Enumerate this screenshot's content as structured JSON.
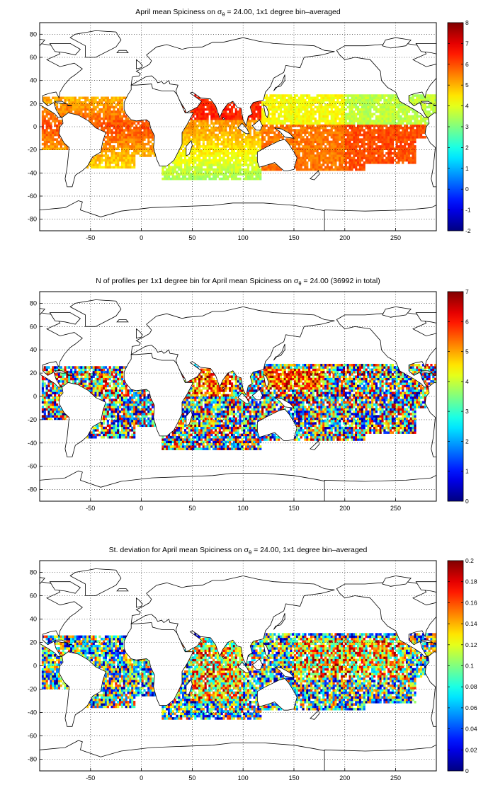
{
  "chart_data": [
    {
      "type": "heatmap",
      "title_before_sigma": "April mean Spiciness on ",
      "title_sigma": "σ",
      "title_sub": "θ",
      "title_after": " = 24.00, 1x1 degree bin–averaged",
      "x_ticks": [
        "-50",
        "0",
        "50",
        "100",
        "150",
        "200",
        "250"
      ],
      "x_tick_values": [
        -50,
        0,
        50,
        100,
        150,
        200,
        250
      ],
      "y_ticks": [
        "80",
        "60",
        "40",
        "20",
        "0",
        "-20",
        "-40",
        "-60",
        "-80"
      ],
      "y_tick_values": [
        80,
        60,
        40,
        20,
        0,
        -20,
        -40,
        -60,
        -80
      ],
      "xlim": [
        -100,
        290
      ],
      "ylim": [
        -90,
        90
      ],
      "colorbar_ticks": [
        "8",
        "7",
        "6",
        "5",
        "4",
        "3",
        "2",
        "1",
        "0",
        "-1",
        "-2"
      ],
      "colorbar_values": [
        8,
        7,
        6,
        5,
        4,
        3,
        2,
        1,
        0,
        -1,
        -2
      ],
      "clim": [
        -2,
        8
      ],
      "colormap": "jet",
      "grid": true
    },
    {
      "type": "heatmap",
      "title_before_sigma": "N of profiles per 1x1 degree bin for April mean Spiciness on ",
      "title_sigma": "σ",
      "title_sub": "θ",
      "title_after": " = 24.00 (36992 in total)",
      "x_ticks": [
        "-50",
        "0",
        "50",
        "100",
        "150",
        "200",
        "250"
      ],
      "x_tick_values": [
        -50,
        0,
        50,
        100,
        150,
        200,
        250
      ],
      "y_ticks": [
        "80",
        "60",
        "40",
        "20",
        "0",
        "-20",
        "-40",
        "-60",
        "-80"
      ],
      "y_tick_values": [
        80,
        60,
        40,
        20,
        0,
        -20,
        -40,
        -60,
        -80
      ],
      "xlim": [
        -100,
        290
      ],
      "ylim": [
        -90,
        90
      ],
      "colorbar_ticks": [
        "7",
        "6",
        "5",
        "4",
        "3",
        "2",
        "1",
        "0"
      ],
      "colorbar_values": [
        7,
        6,
        5,
        4,
        3,
        2,
        1,
        0
      ],
      "clim": [
        0,
        7
      ],
      "colormap": "jet",
      "grid": true
    },
    {
      "type": "heatmap",
      "title_before_sigma": "St. deviation for April mean Spiciness on ",
      "title_sigma": "σ",
      "title_sub": "θ",
      "title_after": " = 24.00, 1x1 degree bin–averaged",
      "x_ticks": [
        "-50",
        "0",
        "50",
        "100",
        "150",
        "200",
        "250"
      ],
      "x_tick_values": [
        -50,
        0,
        50,
        100,
        150,
        200,
        250
      ],
      "y_ticks": [
        "80",
        "60",
        "40",
        "20",
        "0",
        "-20",
        "-40",
        "-60",
        "-80"
      ],
      "y_tick_values": [
        80,
        60,
        40,
        20,
        0,
        -20,
        -40,
        -60,
        -80
      ],
      "xlim": [
        -100,
        290
      ],
      "ylim": [
        -90,
        90
      ],
      "colorbar_ticks": [
        "0.2",
        "0.18",
        "0.16",
        "0.14",
        "0.12",
        "0.1",
        "0.08",
        "0.06",
        "0.04",
        "0.02",
        "0"
      ],
      "colorbar_values": [
        0.2,
        0.18,
        0.16,
        0.14,
        0.12,
        0.1,
        0.08,
        0.06,
        0.04,
        0.02,
        0
      ],
      "clim": [
        0,
        0.2
      ],
      "colormap": "jet",
      "grid": true
    }
  ]
}
